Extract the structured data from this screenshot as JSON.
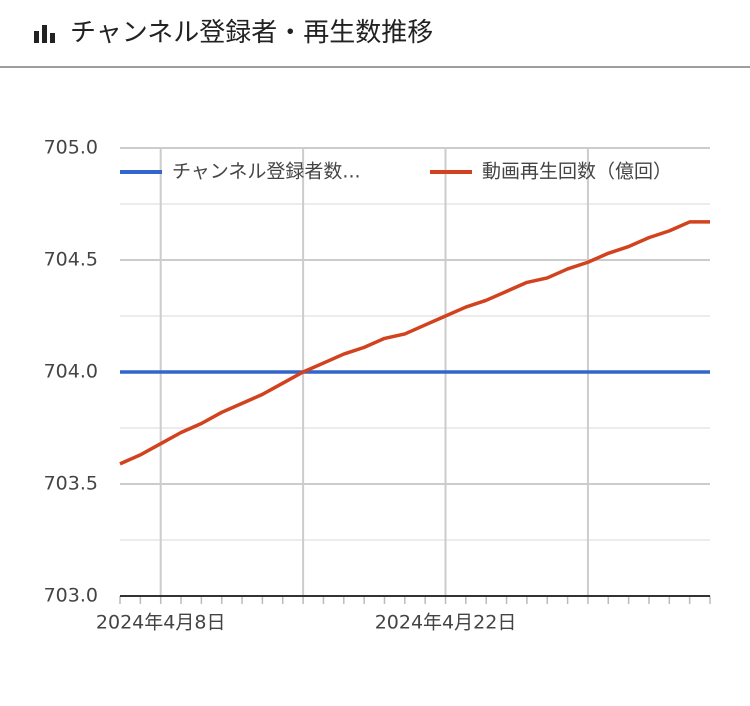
{
  "header": {
    "title": "チャンネル登録者・再生数推移"
  },
  "chart_data": {
    "type": "line",
    "x": [
      "2024-04-06",
      "2024-04-07",
      "2024-04-08",
      "2024-04-09",
      "2024-04-10",
      "2024-04-11",
      "2024-04-12",
      "2024-04-13",
      "2024-04-14",
      "2024-04-15",
      "2024-04-16",
      "2024-04-17",
      "2024-04-18",
      "2024-04-19",
      "2024-04-20",
      "2024-04-21",
      "2024-04-22",
      "2024-04-23",
      "2024-04-24",
      "2024-04-25",
      "2024-04-26",
      "2024-04-27",
      "2024-04-28",
      "2024-04-29",
      "2024-04-30",
      "2024-05-01",
      "2024-05-02",
      "2024-05-03",
      "2024-05-04",
      "2024-05-05"
    ],
    "series": [
      {
        "name": "チャンネル登録者数...",
        "color": "#3366cc",
        "values": [
          704,
          704,
          704,
          704,
          704,
          704,
          704,
          704,
          704,
          704,
          704,
          704,
          704,
          704,
          704,
          704,
          704,
          704,
          704,
          704,
          704,
          704,
          704,
          704,
          704,
          704,
          704,
          704,
          704,
          704
        ]
      },
      {
        "name": "動画再生回数（億回）",
        "color": "#d2421e",
        "values": [
          703.59,
          703.63,
          703.68,
          703.73,
          703.77,
          703.82,
          703.86,
          703.9,
          703.95,
          704.0,
          704.04,
          704.08,
          704.11,
          704.15,
          704.17,
          704.21,
          704.25,
          704.29,
          704.32,
          704.36,
          704.4,
          704.42,
          704.46,
          704.49,
          704.53,
          704.56,
          704.6,
          704.63,
          704.67,
          704.67
        ]
      }
    ],
    "xlim": [
      "2024-04-06",
      "2024-05-05"
    ],
    "xticks": [
      {
        "value": "2024-04-08",
        "label": "2024年4月8日"
      },
      {
        "value": "2024-04-15",
        "label": null
      },
      {
        "value": "2024-04-22",
        "label": "2024年4月22日"
      },
      {
        "value": "2024-04-29",
        "label": null
      }
    ],
    "ylim": [
      703,
      705
    ],
    "yticks": [
      {
        "value": 703,
        "label": "703.0"
      },
      {
        "value": 703.5,
        "label": "703.5"
      },
      {
        "value": 704,
        "label": "704.0"
      },
      {
        "value": 704.5,
        "label": "704.5"
      },
      {
        "value": 705,
        "label": "705.0"
      }
    ],
    "y_minor_ticks": [
      703.25,
      703.75,
      704.25,
      704.75
    ],
    "grid": true,
    "legend": "top"
  }
}
